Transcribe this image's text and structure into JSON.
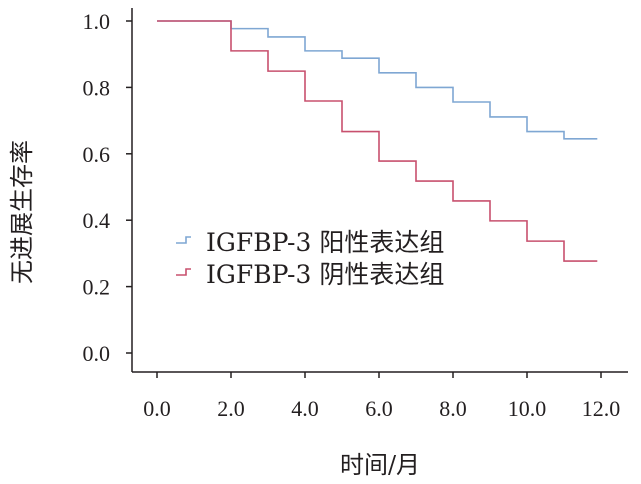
{
  "chart_data": {
    "type": "line",
    "subtype": "kaplan-meier-step",
    "title": "",
    "xlabel": "时间/月",
    "ylabel": "无进展生存率",
    "xlim": [
      0,
      12
    ],
    "ylim": [
      0,
      1
    ],
    "x_ticks": [
      "0.0",
      "2.0",
      "4.0",
      "6.0",
      "8.0",
      "10.0",
      "12.0"
    ],
    "x_tick_values": [
      0,
      2,
      4,
      6,
      8,
      10,
      12
    ],
    "y_ticks": [
      "0.0",
      "0.2",
      "0.4",
      "0.6",
      "0.8",
      "1.0"
    ],
    "y_tick_values": [
      0,
      0.2,
      0.4,
      0.6,
      0.8,
      1.0
    ],
    "grid": false,
    "legend_position": "center-left",
    "series": [
      {
        "name": "IGFBP-3 阳性表达组",
        "color": "#7fa7d3",
        "x": [
          0,
          2,
          3,
          4,
          5,
          6,
          7,
          8,
          9,
          10,
          11,
          11.9
        ],
        "y": [
          1.0,
          0.977,
          0.952,
          0.91,
          0.888,
          0.844,
          0.8,
          0.756,
          0.711,
          0.667,
          0.645,
          0.645
        ]
      },
      {
        "name": "IGFBP-3 阴性表达组",
        "color": "#c8506e",
        "x": [
          0,
          2,
          3,
          4,
          5,
          6,
          7,
          8,
          9,
          10,
          11,
          11.9
        ],
        "y": [
          1.0,
          0.91,
          0.849,
          0.759,
          0.667,
          0.578,
          0.518,
          0.458,
          0.398,
          0.337,
          0.277,
          0.277
        ]
      }
    ]
  }
}
